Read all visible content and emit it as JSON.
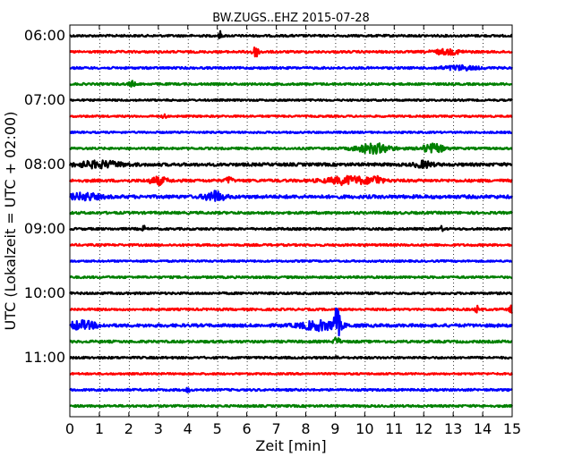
{
  "chart_data": {
    "type": "line",
    "title": "BW.ZUGS..EHZ 2015-07-28",
    "xlabel": "Zeit  [min]",
    "ylabel": "UTC (Lokalzeit = UTC + 02:00)",
    "xlim": [
      0,
      15
    ],
    "x_ticks": [
      "0",
      "1",
      "2",
      "3",
      "4",
      "5",
      "6",
      "7",
      "8",
      "9",
      "10",
      "11",
      "12",
      "13",
      "14",
      "15"
    ],
    "y_ticks": [
      "06:00",
      "07:00",
      "08:00",
      "09:00",
      "10:00",
      "11:00"
    ],
    "grid": "vertical dotted",
    "colors": [
      "#000000",
      "#ff0000",
      "#0000ff",
      "#008000"
    ],
    "traces": [
      {
        "start": "06:00",
        "color": "#000000",
        "noise": 0.35,
        "events": [
          {
            "t": 5.1,
            "amp": 1.4,
            "w": 0.05
          }
        ]
      },
      {
        "start": "06:15",
        "color": "#ff0000",
        "noise": 0.35,
        "events": [
          {
            "t": 6.3,
            "amp": 1.6,
            "w": 0.15
          },
          {
            "t": 12.8,
            "amp": 0.8,
            "w": 0.5
          }
        ]
      },
      {
        "start": "06:30",
        "color": "#0000ff",
        "noise": 0.35,
        "events": [
          {
            "t": 13.2,
            "amp": 0.7,
            "w": 0.6
          }
        ]
      },
      {
        "start": "06:45",
        "color": "#008000",
        "noise": 0.35,
        "events": [
          {
            "t": 2.1,
            "amp": 0.9,
            "w": 0.1
          }
        ]
      },
      {
        "start": "07:00",
        "color": "#000000",
        "noise": 0.3,
        "events": []
      },
      {
        "start": "07:15",
        "color": "#ff0000",
        "noise": 0.3,
        "events": [
          {
            "t": 3.2,
            "amp": 1.2,
            "w": 0.05
          }
        ]
      },
      {
        "start": "07:30",
        "color": "#0000ff",
        "noise": 0.3,
        "events": []
      },
      {
        "start": "07:45",
        "color": "#008000",
        "noise": 0.35,
        "events": [
          {
            "t": 10.3,
            "amp": 1.6,
            "w": 0.6
          },
          {
            "t": 12.3,
            "amp": 1.4,
            "w": 0.4
          }
        ]
      },
      {
        "start": "08:00",
        "color": "#000000",
        "noise": 0.5,
        "events": [
          {
            "t": 1.0,
            "amp": 1.0,
            "w": 0.8
          },
          {
            "t": 12.0,
            "amp": 1.0,
            "w": 0.3
          }
        ]
      },
      {
        "start": "08:15",
        "color": "#ff0000",
        "noise": 0.45,
        "events": [
          {
            "t": 3.0,
            "amp": 1.2,
            "w": 0.3
          },
          {
            "t": 5.4,
            "amp": 1.3,
            "w": 0.1
          },
          {
            "t": 9.5,
            "amp": 1.3,
            "w": 0.8
          },
          {
            "t": 10.4,
            "amp": 1.5,
            "w": 0.15
          }
        ]
      },
      {
        "start": "08:30",
        "color": "#0000ff",
        "noise": 0.55,
        "events": [
          {
            "t": 0.5,
            "amp": 1.1,
            "w": 0.5
          },
          {
            "t": 4.9,
            "amp": 1.8,
            "w": 0.3
          }
        ]
      },
      {
        "start": "08:45",
        "color": "#008000",
        "noise": 0.4,
        "events": []
      },
      {
        "start": "09:00",
        "color": "#000000",
        "noise": 0.35,
        "events": [
          {
            "t": 2.5,
            "amp": 1.3,
            "w": 0.04
          },
          {
            "t": 12.6,
            "amp": 0.9,
            "w": 0.05
          }
        ]
      },
      {
        "start": "09:15",
        "color": "#ff0000",
        "noise": 0.35,
        "events": []
      },
      {
        "start": "09:30",
        "color": "#0000ff",
        "noise": 0.3,
        "events": []
      },
      {
        "start": "09:45",
        "color": "#008000",
        "noise": 0.35,
        "events": []
      },
      {
        "start": "10:00",
        "color": "#000000",
        "noise": 0.35,
        "events": []
      },
      {
        "start": "10:15",
        "color": "#ff0000",
        "noise": 0.35,
        "events": [
          {
            "t": 13.8,
            "amp": 1.3,
            "w": 0.05
          },
          {
            "t": 15.0,
            "amp": 1.3,
            "w": 0.1
          }
        ]
      },
      {
        "start": "10:30",
        "color": "#0000ff",
        "noise": 0.5,
        "events": [
          {
            "t": 0.4,
            "amp": 1.4,
            "w": 0.5
          },
          {
            "t": 8.5,
            "amp": 1.5,
            "w": 0.7
          },
          {
            "t": 9.05,
            "amp": 5.0,
            "w": 0.12
          }
        ]
      },
      {
        "start": "10:45",
        "color": "#008000",
        "noise": 0.4,
        "events": [
          {
            "t": 9.05,
            "amp": 1.5,
            "w": 0.1
          }
        ]
      },
      {
        "start": "11:00",
        "color": "#000000",
        "noise": 0.35,
        "events": [
          {
            "t": 9.05,
            "amp": 1.0,
            "w": 0.05
          }
        ]
      },
      {
        "start": "11:15",
        "color": "#ff0000",
        "noise": 0.3,
        "events": []
      },
      {
        "start": "11:30",
        "color": "#0000ff",
        "noise": 0.35,
        "events": [
          {
            "t": 4.0,
            "amp": 1.0,
            "w": 0.05
          }
        ]
      },
      {
        "start": "11:45",
        "color": "#008000",
        "noise": 0.35,
        "events": []
      }
    ]
  }
}
